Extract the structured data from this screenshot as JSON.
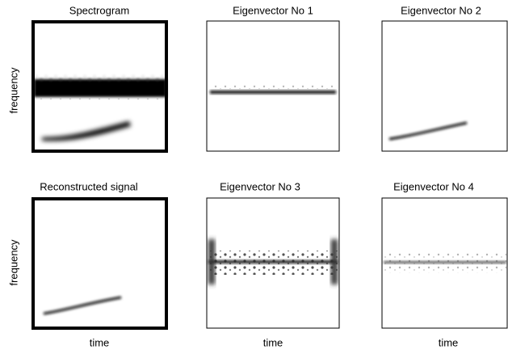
{
  "panels": [
    {
      "title": "Spectrogram"
    },
    {
      "title": "Eigenvector No 1"
    },
    {
      "title": "Eigenvector No 2"
    },
    {
      "title": "Reconstructed signal"
    },
    {
      "title": "Eigenvector No 3"
    },
    {
      "title": "Eigenvector No 4"
    }
  ],
  "y_label": "frequency",
  "x_label": "time"
}
